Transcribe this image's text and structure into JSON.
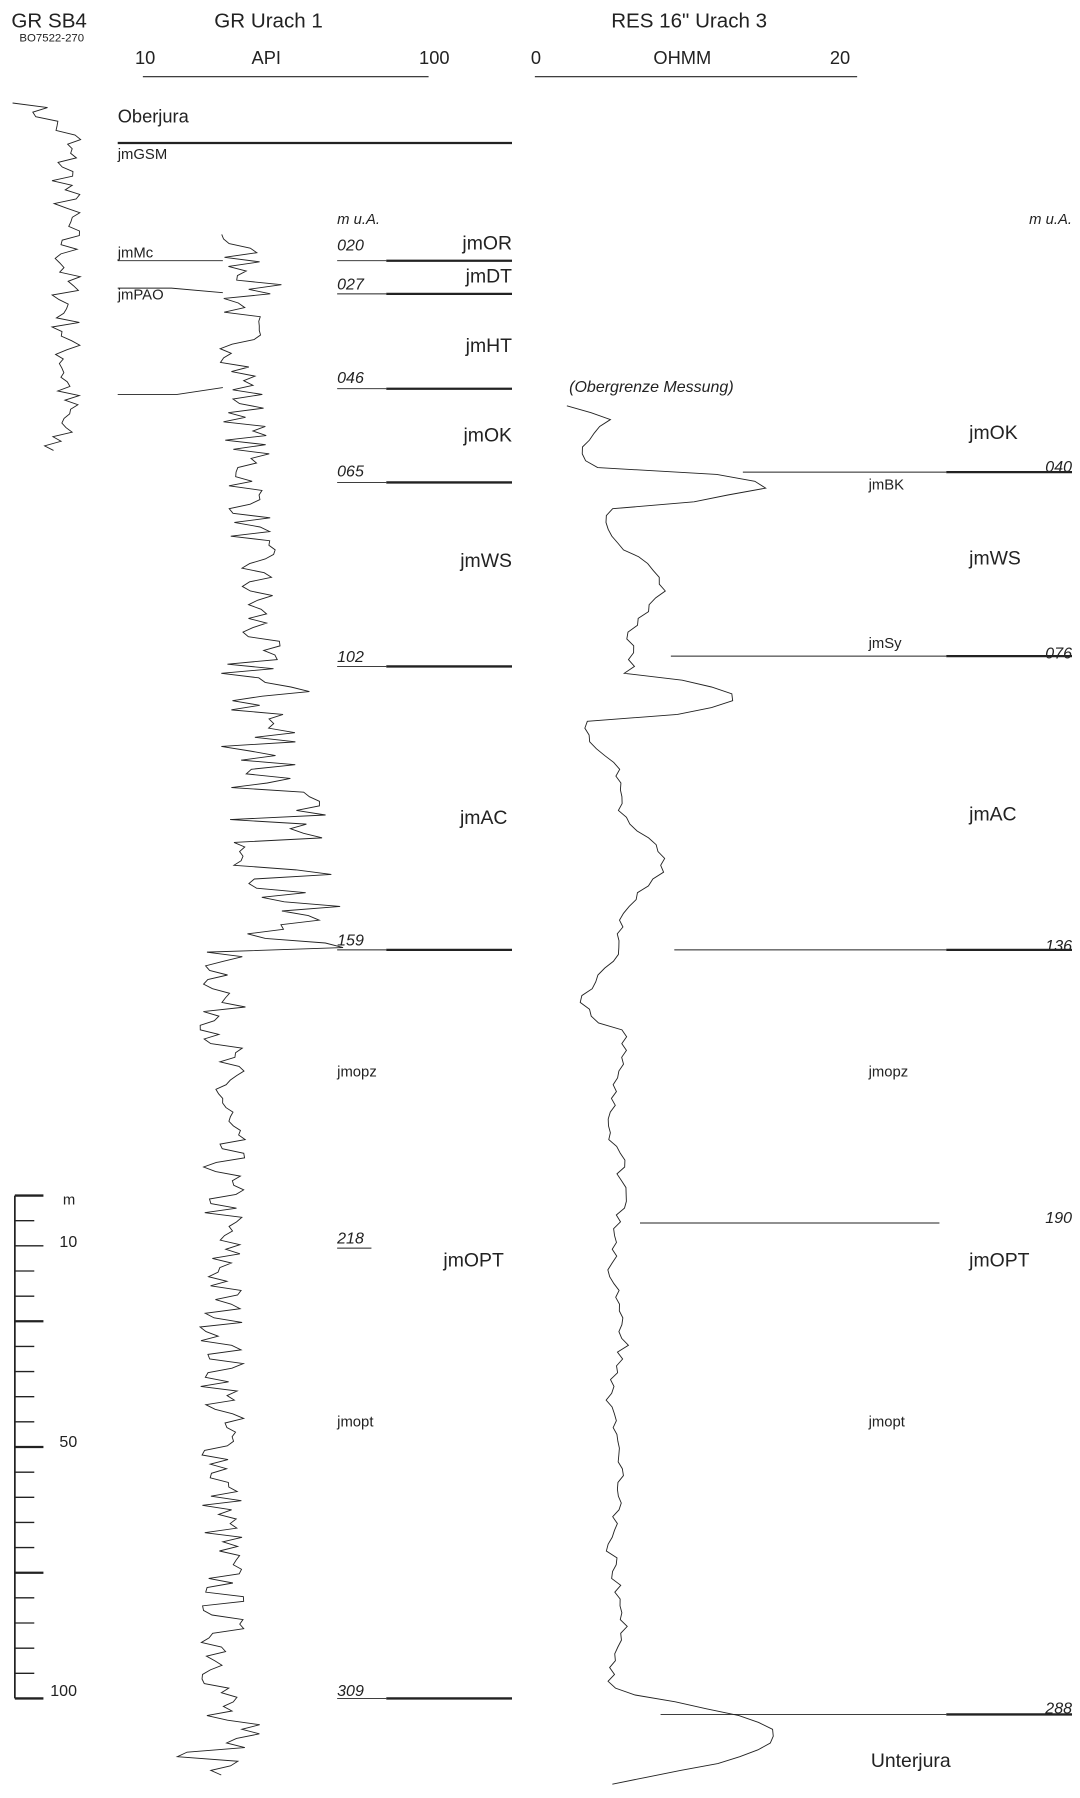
{
  "headers": {
    "sb4": {
      "title": "GR SB4",
      "subtitle": "BO7522-270"
    },
    "urach1": {
      "title": "GR Urach 1",
      "min": "10",
      "unit": "API",
      "max": "100"
    },
    "urach3": {
      "title": "RES 16\" Urach 3",
      "min": "0",
      "unit": "OHMM",
      "max": "20"
    }
  },
  "top": {
    "unit": "Oberjura",
    "member": "jmGSM",
    "left_marks": [
      "jmMc",
      "jmPAO"
    ]
  },
  "depth_unit": "m u.A.",
  "urach1": {
    "depths": [
      "020",
      "027",
      "046",
      "065",
      "102",
      "159",
      "218",
      "309"
    ],
    "units": [
      "jmOR",
      "jmDT",
      "jmHT",
      "jmOK",
      "jmWS",
      "jmAC",
      "jmopz",
      "jmOPT",
      "jmopt"
    ]
  },
  "urach3": {
    "note": "(Obergrenze Messung)",
    "depths": [
      "040",
      "076",
      "136",
      "190",
      "288"
    ],
    "units": [
      "jmOK",
      "jmBK",
      "jmWS",
      "jmSy",
      "jmAC",
      "jmopz",
      "jmOPT",
      "jmopt",
      "Unterjura"
    ]
  },
  "scale": {
    "unit": "m",
    "labels": [
      "10",
      "50",
      "100"
    ]
  }
}
